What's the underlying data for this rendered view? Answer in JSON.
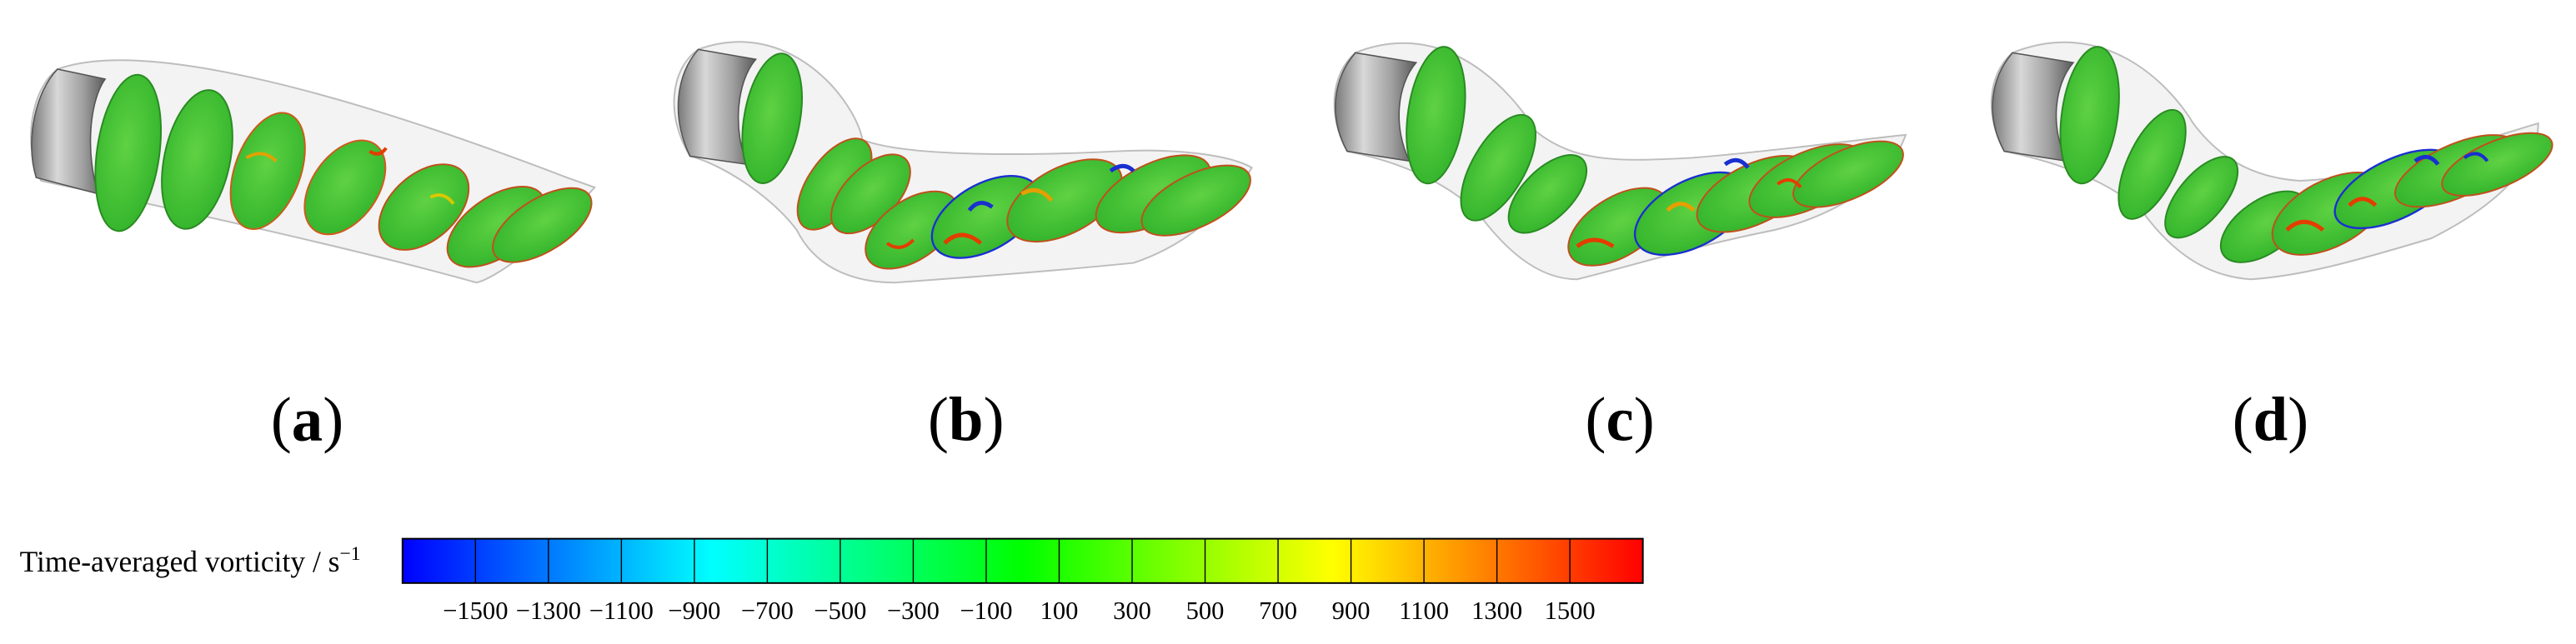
{
  "panels": [
    {
      "label_open": "(",
      "label_letter": "a",
      "label_close": ")"
    },
    {
      "label_open": "(",
      "label_letter": "b",
      "label_close": ")"
    },
    {
      "label_open": "(",
      "label_letter": "c",
      "label_close": ")"
    },
    {
      "label_open": "(",
      "label_letter": "d",
      "label_close": ")"
    }
  ],
  "colorbar": {
    "title": "Time-averaged vorticity / s",
    "title_unit_exponent": "−1",
    "tick_labels": [
      "−1500",
      "−1300",
      "−1100",
      "−900",
      "−700",
      "−500",
      "−300",
      "−100",
      "100",
      "300",
      "500",
      "700",
      "900",
      "1100",
      "1300",
      "1500"
    ],
    "colors": [
      "#0000ff",
      "#0040ff",
      "#0080ff",
      "#00c0ff",
      "#00ffff",
      "#00ffc0",
      "#00ff80",
      "#00ff40",
      "#00ff00",
      "#40ff00",
      "#80ff00",
      "#c0ff00",
      "#ffff00",
      "#ffc000",
      "#ff8000",
      "#ff4000",
      "#ff0000"
    ]
  }
}
